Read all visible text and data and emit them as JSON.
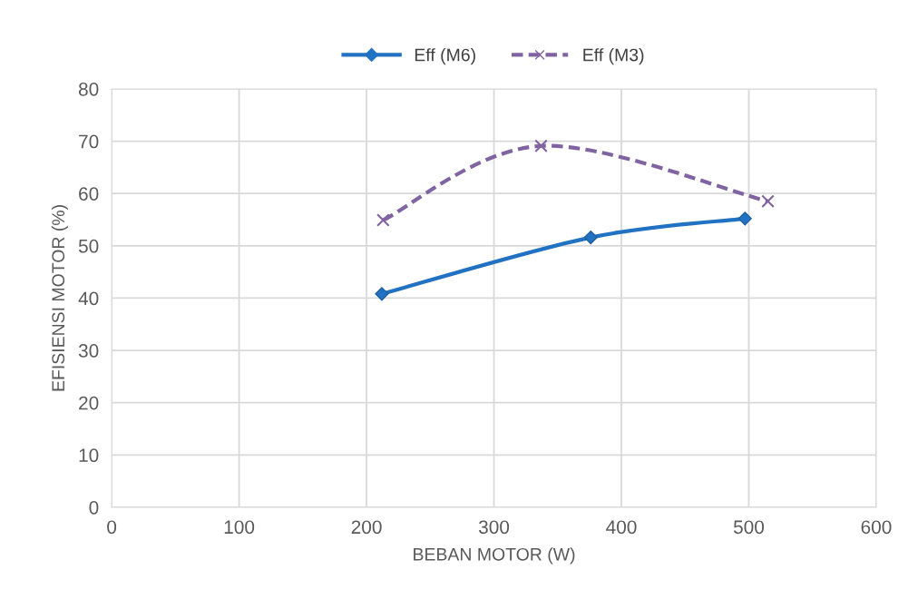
{
  "chart_data": {
    "type": "line",
    "xlabel": "BEBAN MOTOR (W)",
    "ylabel": "EFISIENSI MOTOR (%)",
    "series": [
      {
        "name": "Eff (M6)",
        "color": "#2272c3",
        "x": [
          212,
          376,
          497
        ],
        "values": [
          40.8,
          51.6,
          55.2
        ],
        "marker": "diamond",
        "line_style": "solid"
      },
      {
        "name": "Eff (M3)",
        "color": "#8064a2",
        "x": [
          213,
          337,
          515
        ],
        "values": [
          54.9,
          69.1,
          58.5
        ],
        "marker": "cross",
        "line_style": "dashed"
      }
    ],
    "xlim": [
      0,
      600
    ],
    "xticks": [
      0,
      100,
      200,
      300,
      400,
      500,
      600
    ],
    "ylim": [
      0,
      80
    ],
    "yticks": [
      0,
      10,
      20,
      30,
      40,
      50,
      60,
      70,
      80
    ],
    "grid": true,
    "legend": "top"
  }
}
